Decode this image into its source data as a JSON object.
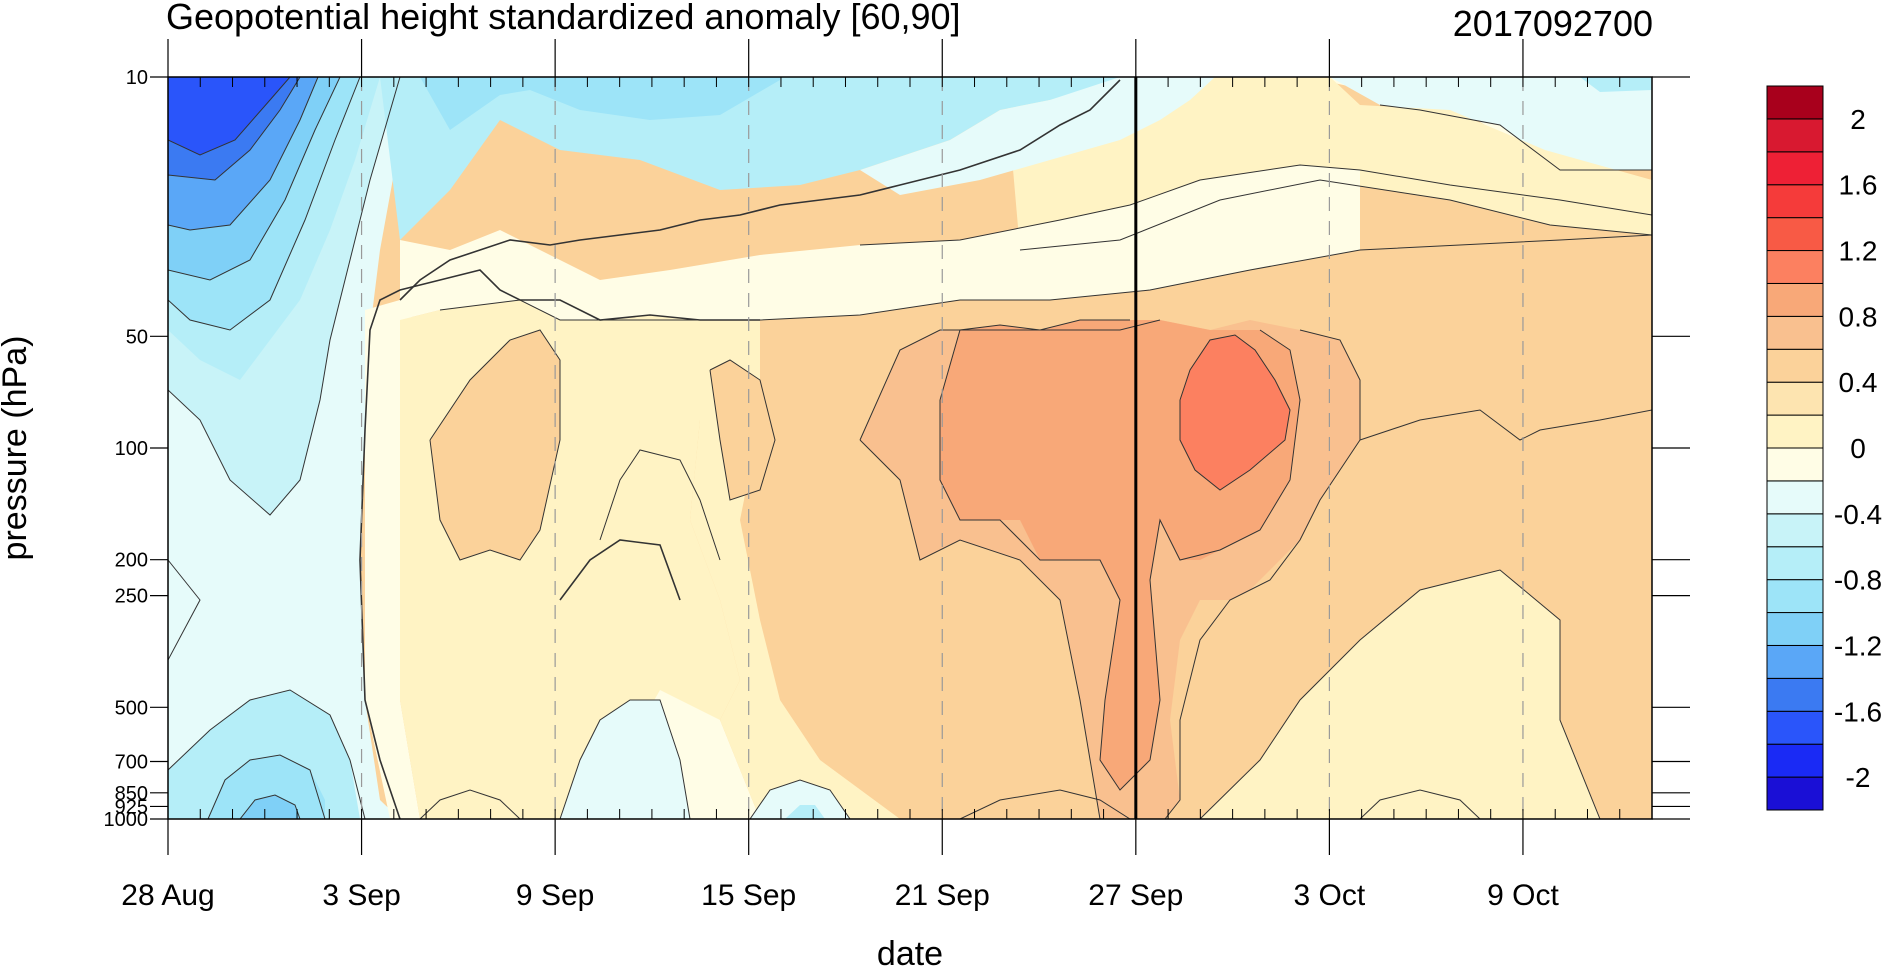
{
  "chart_data": {
    "type": "heatmap",
    "title": "Geopotential height standardized anomaly [60,90]",
    "subtitle": "2017092700",
    "xlabel": "date",
    "ylabel": "pressure (hPa)",
    "y_scale": "log",
    "y_reversed": true,
    "xlim": [
      "2017-08-28",
      "2017-10-13"
    ],
    "ylim": [
      1000,
      10
    ],
    "x_ticks": [
      "2017-08-28",
      "2017-09-03",
      "2017-09-09",
      "2017-09-15",
      "2017-09-21",
      "2017-09-27",
      "2017-10-03",
      "2017-10-09"
    ],
    "x_tick_labels": [
      "28 Aug",
      "3 Sep",
      "9 Sep",
      "15 Sep",
      "21 Sep",
      "27 Sep",
      "3 Oct",
      "9 Oct"
    ],
    "y_ticks": [
      10,
      50,
      100,
      200,
      250,
      500,
      700,
      850,
      925,
      1000
    ],
    "y_tick_labels": [
      "10",
      "50",
      "100",
      "200",
      "250",
      "500",
      "700",
      "850",
      "925",
      "1000"
    ],
    "reference_date": "2017-09-27",
    "grid": "dashed vertical lines at x ticks",
    "colorbar": {
      "levels": [
        -2.2,
        -2,
        -1.8,
        -1.6,
        -1.4,
        -1.2,
        -1,
        -0.8,
        -0.6,
        -0.4,
        -0.2,
        0,
        0.2,
        0.4,
        0.6,
        0.8,
        1,
        1.2,
        1.4,
        1.6,
        1.8,
        2,
        2.2
      ],
      "colors": [
        "#1a0fd6",
        "#1a2af5",
        "#2a55fa",
        "#3b7af2",
        "#5aa7f7",
        "#7fd0f7",
        "#9de4f8",
        "#b5eef8",
        "#c8f3f8",
        "#e6fbfa",
        "#fffde6",
        "#fff3c4",
        "#fde4b0",
        "#fbd29a",
        "#f9c08f",
        "#f8a878",
        "#fc8060",
        "#f85a45",
        "#f53b3a",
        "#ee2035",
        "#d81930",
        "#a8001c"
      ],
      "labels": [
        "2",
        "1.6",
        "1.2",
        "0.8",
        "0.4",
        "0",
        "-0.4",
        "-0.8",
        "-1.2",
        "-1.6",
        "-2"
      ],
      "label_values": [
        2,
        1.6,
        1.2,
        0.8,
        0.4,
        0,
        -0.4,
        -0.8,
        -1.2,
        -1.6,
        -2
      ]
    },
    "features": [
      {
        "name": "strong negative anomaly, upper levels",
        "x_range": [
          "2017-08-28",
          "2017-09-03"
        ],
        "y_range": [
          10,
          50
        ],
        "value": -1.8
      },
      {
        "name": "negative anomaly, lower levels",
        "x_range": [
          "2017-08-28",
          "2017-09-03"
        ],
        "y_range": [
          500,
          1000
        ],
        "value": -0.8
      },
      {
        "name": "positive anomaly core",
        "x_range": [
          "2017-09-27",
          "2017-10-01"
        ],
        "y_range": [
          50,
          150
        ],
        "value": 1.2
      }
    ]
  }
}
